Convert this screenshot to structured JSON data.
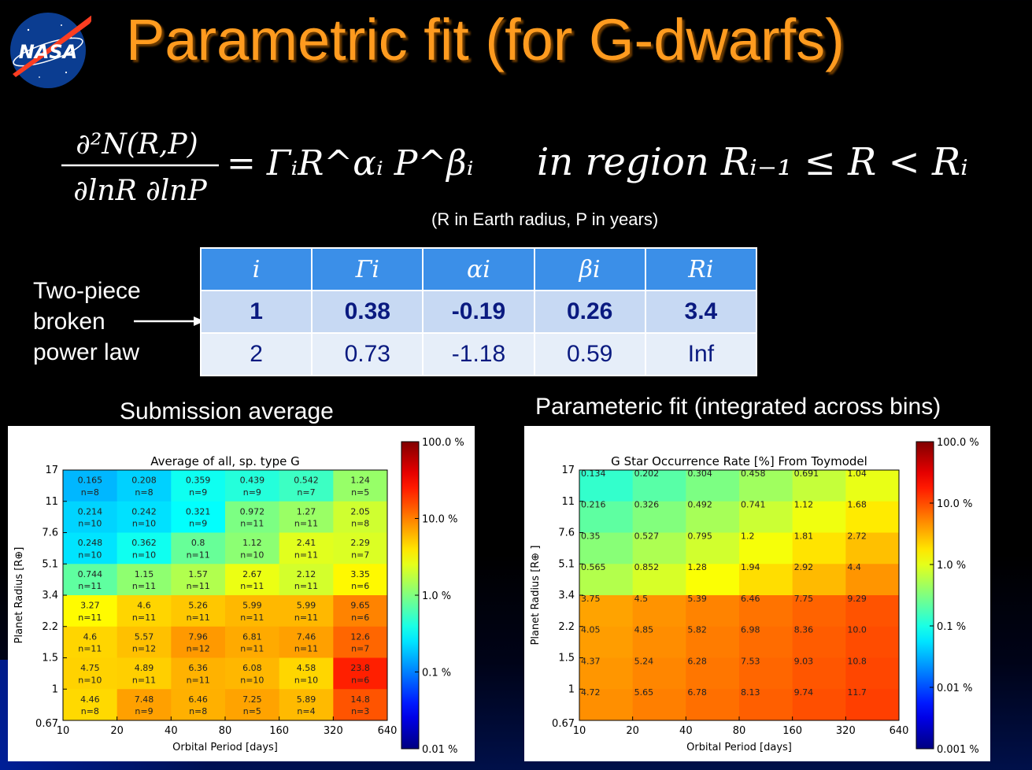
{
  "title": "Parametric fit (for G-dwarfs)",
  "logo_text": "NASA",
  "equation": {
    "lhs_numerator": "∂²N(R,P)",
    "lhs_denominator": "∂lnR ∂lnP",
    "rhs": "= ΓᵢR^αᵢ P^βᵢ",
    "region": "in region Rᵢ₋₁ ≤ R < Rᵢ",
    "note": "(R in Earth radius, P in years)"
  },
  "side_note": [
    "Two-piece",
    "broken",
    "power law"
  ],
  "param_table": {
    "headers": [
      "i",
      "Γi",
      "αi",
      "βi",
      "Ri"
    ],
    "rows": [
      [
        "1",
        "0.38",
        "-0.19",
        "0.26",
        "3.4"
      ],
      [
        "2",
        "0.73",
        "-1.18",
        "0.59",
        "Inf"
      ]
    ]
  },
  "subtitles": {
    "left": "Submission average",
    "right": "Parameteric fit (integrated across bins)"
  },
  "chart_data": [
    {
      "type": "heatmap",
      "title": "Average of all, sp. type G",
      "xlabel": "Orbital Period [days]",
      "ylabel": "Planet Radius [R⊕]",
      "x_ticks": [
        "10",
        "20",
        "40",
        "80",
        "160",
        "320",
        "640"
      ],
      "y_ticks": [
        "0.67",
        "1",
        "1.5",
        "2.2",
        "3.4",
        "5.1",
        "7.6",
        "11",
        "17"
      ],
      "scale": "log",
      "colorbar_ticks": [
        "100.0 %",
        "10.0 %",
        "1.0 %",
        "0.1 %",
        "0.01 %"
      ],
      "colorbar_range": [
        0.01,
        100
      ],
      "rows_top_to_bottom": [
        {
          "values": [
            0.165,
            0.208,
            0.359,
            0.439,
            0.542,
            1.24
          ],
          "n": [
            "n=8",
            "n=8",
            "n=9",
            "n=9",
            "n=7",
            "n=5"
          ]
        },
        {
          "values": [
            0.214,
            0.242,
            0.321,
            0.972,
            1.27,
            2.05
          ],
          "n": [
            "n=10",
            "n=10",
            "n=9",
            "n=11",
            "n=11",
            "n=8"
          ]
        },
        {
          "values": [
            0.248,
            0.362,
            0.8,
            1.12,
            2.41,
            2.29
          ],
          "n": [
            "n=10",
            "n=10",
            "n=11",
            "n=10",
            "n=11",
            "n=7"
          ]
        },
        {
          "values": [
            0.744,
            1.15,
            1.57,
            2.67,
            2.12,
            3.35
          ],
          "n": [
            "n=11",
            "n=11",
            "n=11",
            "n=11",
            "n=11",
            "n=6"
          ]
        },
        {
          "values": [
            3.27,
            4.6,
            5.26,
            5.99,
            5.99,
            9.65
          ],
          "n": [
            "n=11",
            "n=11",
            "n=11",
            "n=11",
            "n=11",
            "n=6"
          ]
        },
        {
          "values": [
            4.6,
            5.57,
            7.96,
            6.81,
            7.46,
            12.6
          ],
          "n": [
            "n=11",
            "n=12",
            "n=12",
            "n=11",
            "n=11",
            "n=7"
          ]
        },
        {
          "values": [
            4.75,
            4.89,
            6.36,
            6.08,
            4.58,
            23.8
          ],
          "n": [
            "n=10",
            "n=11",
            "n=11",
            "n=10",
            "n=10",
            "n=6"
          ]
        },
        {
          "values": [
            4.46,
            7.48,
            6.46,
            7.25,
            5.89,
            14.8
          ],
          "n": [
            "n=8",
            "n=9",
            "n=8",
            "n=5",
            "n=4",
            "n=3"
          ]
        }
      ]
    },
    {
      "type": "heatmap",
      "title": "G Star Occurrence Rate [%] From Toymodel",
      "xlabel": "Orbital Period [days]",
      "ylabel": "Planet Radius [R⊕ ]",
      "x_ticks": [
        "10",
        "20",
        "40",
        "80",
        "160",
        "320",
        "640"
      ],
      "y_ticks": [
        "0.67",
        "1",
        "1.5",
        "2.2",
        "3.4",
        "5.1",
        "7.6",
        "11",
        "17"
      ],
      "scale": "log",
      "colorbar_ticks": [
        "100.0 %",
        "10.0 %",
        "1.0 %",
        "0.1 %",
        "0.01 %",
        "0.001 %"
      ],
      "colorbar_range": [
        0.001,
        100
      ],
      "rows_top_to_bottom": [
        {
          "values": [
            0.134,
            0.202,
            0.304,
            0.458,
            0.691,
            1.04
          ]
        },
        {
          "values": [
            0.216,
            0.326,
            0.492,
            0.741,
            1.12,
            1.68
          ]
        },
        {
          "values": [
            0.35,
            0.527,
            0.795,
            1.2,
            1.81,
            2.72
          ]
        },
        {
          "values": [
            0.565,
            0.852,
            1.28,
            1.94,
            2.92,
            4.4
          ]
        },
        {
          "values": [
            3.75,
            4.5,
            5.39,
            6.46,
            7.75,
            9.29
          ]
        },
        {
          "values": [
            4.05,
            4.85,
            5.82,
            6.98,
            8.36,
            10.0
          ]
        },
        {
          "values": [
            4.37,
            5.24,
            6.28,
            7.53,
            9.03,
            10.8
          ]
        },
        {
          "values": [
            4.72,
            5.65,
            6.78,
            8.13,
            9.74,
            11.7
          ]
        }
      ],
      "cell_labels_top_to_bottom": [
        [
          "0.134",
          "0.202",
          "0.304",
          "0.458",
          "0.691",
          "1.04"
        ],
        [
          "0.216",
          "0.326",
          "0.492",
          "0.741",
          "1.12",
          "1.68"
        ],
        [
          "0.35",
          "0.527",
          "0.795",
          "1.2",
          "1.81",
          "2.72"
        ],
        [
          "0.565",
          "0.852",
          "1.28",
          "1.94",
          "2.92",
          "4.4"
        ],
        [
          "3.75",
          "4.5",
          "5.39",
          "6.46",
          "7.75",
          "9.29"
        ],
        [
          "4.05",
          "4.85",
          "5.82",
          "6.98",
          "8.36",
          "10.0"
        ],
        [
          "4.37",
          "5.24",
          "6.28",
          "7.53",
          "9.03",
          "10.8"
        ],
        [
          "4.72",
          "5.65",
          "6.78",
          "8.13",
          "9.74",
          "11.7"
        ]
      ]
    }
  ]
}
